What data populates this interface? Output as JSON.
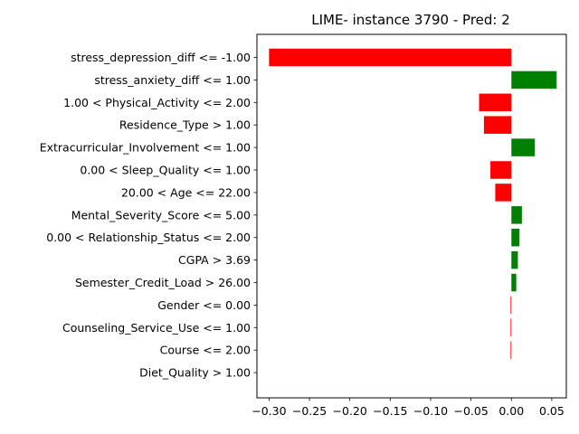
{
  "chart_data": {
    "type": "bar",
    "orientation": "horizontal",
    "title": "LIME- instance 3790 - Pred: 2",
    "xlabel": "",
    "ylabel": "",
    "xlim": [
      -0.315,
      0.068
    ],
    "x_ticks": [
      -0.3,
      -0.25,
      -0.2,
      -0.15,
      -0.1,
      -0.05,
      0.0,
      0.05
    ],
    "x_tick_labels": [
      "−0.30",
      "−0.25",
      "−0.20",
      "−0.15",
      "−0.10",
      "−0.05",
      "0.00",
      "0.05"
    ],
    "grid": false,
    "legend": "none",
    "colors": {
      "positive": "#008000",
      "negative": "#ff0000"
    },
    "categories": [
      "stress_depression_diff <= -1.00",
      "stress_anxiety_diff <= 1.00",
      "1.00 < Physical_Activity <= 2.00",
      "Residence_Type > 1.00",
      "Extracurricular_Involvement <= 1.00",
      "0.00 < Sleep_Quality <= 1.00",
      "20.00 < Age <= 22.00",
      "Mental_Severity_Score <= 5.00",
      "0.00 < Relationship_Status <= 2.00",
      "CGPA > 3.69",
      "Semester_Credit_Load > 26.00",
      "Gender <= 0.00",
      "Counseling_Service_Use <= 1.00",
      "Course <= 2.00",
      "Diet_Quality > 1.00"
    ],
    "values": [
      -0.3,
      0.056,
      -0.04,
      -0.034,
      0.029,
      -0.026,
      -0.02,
      0.013,
      0.01,
      0.008,
      0.006,
      -0.001,
      -0.001,
      -0.001,
      0.0
    ]
  }
}
